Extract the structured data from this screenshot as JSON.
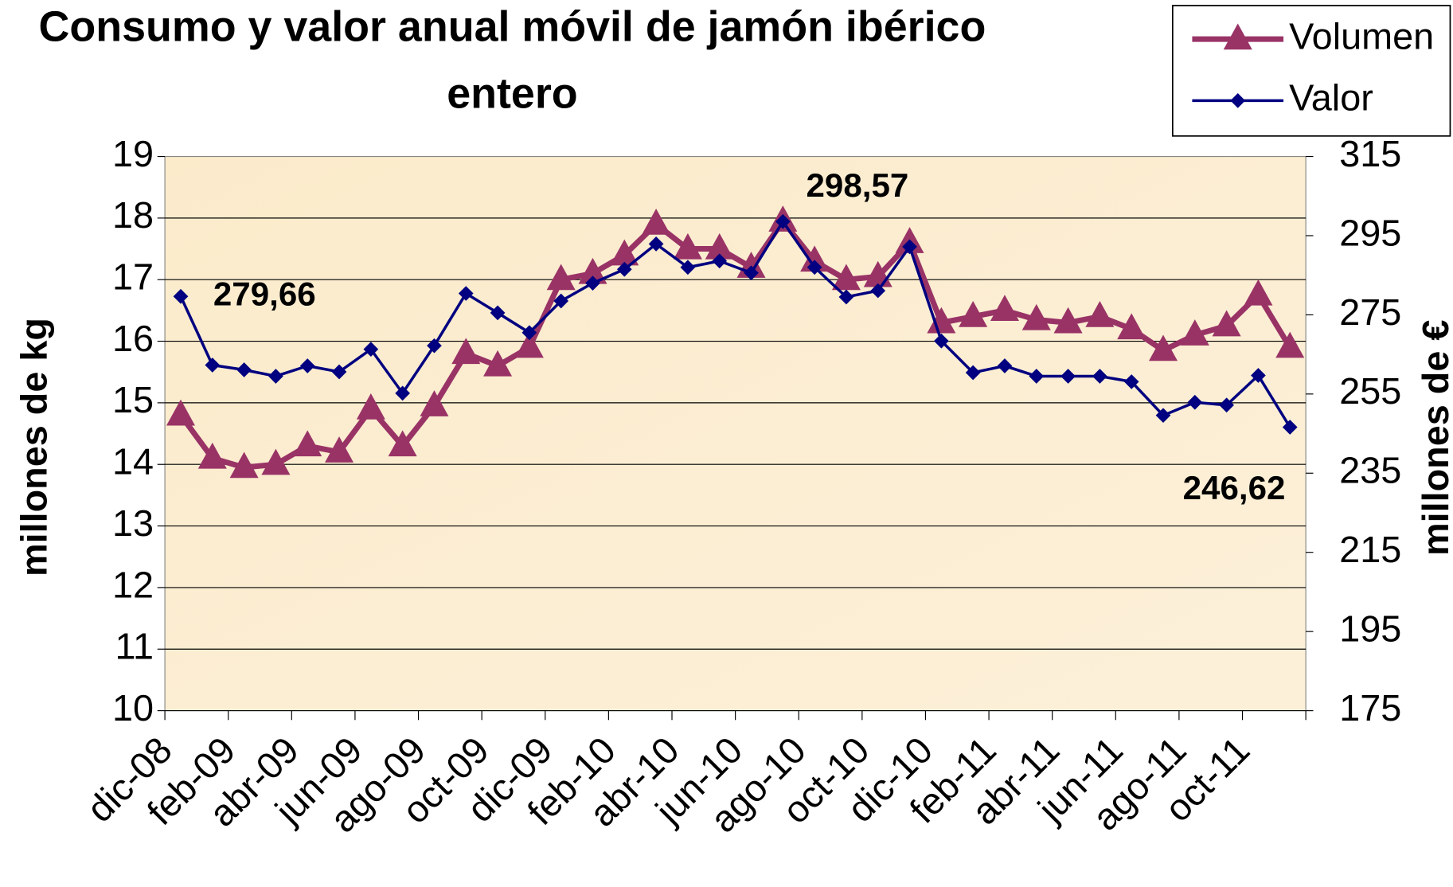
{
  "chart_data": {
    "type": "line",
    "title": "Consumo y valor anual móvil de jamón ibérico entero",
    "categories": [
      "dic-08",
      null,
      "feb-09",
      null,
      "abr-09",
      null,
      "jun-09",
      null,
      "ago-09",
      null,
      "oct-09",
      null,
      "dic-09",
      null,
      "feb-10",
      null,
      "abr-10",
      null,
      "jun-10",
      null,
      "ago-10",
      null,
      "oct-10",
      null,
      "dic-10",
      null,
      "feb-11",
      null,
      "abr-11",
      null,
      "jun-11",
      null,
      "ago-11",
      null,
      "oct-11",
      null
    ],
    "y_label": "millones de kg",
    "y2_label": "millones de €",
    "ylim": [
      10,
      19
    ],
    "yticks": [
      10,
      11,
      12,
      13,
      14,
      15,
      16,
      17,
      18,
      19
    ],
    "y2lim": [
      175,
      315
    ],
    "y2ticks": [
      175,
      195,
      215,
      235,
      255,
      275,
      295,
      315
    ],
    "grid": true,
    "legend": "top-right",
    "series": [
      {
        "name": "Volumen",
        "color": "#993366",
        "marker": "triangle",
        "values": [
          14.8,
          14.1,
          13.95,
          14.0,
          14.3,
          14.2,
          14.9,
          14.3,
          14.95,
          15.8,
          15.6,
          15.9,
          17.0,
          17.1,
          17.4,
          17.9,
          17.5,
          17.5,
          17.2,
          17.95,
          17.3,
          17.0,
          17.05,
          17.6,
          16.3,
          16.4,
          16.5,
          16.35,
          16.3,
          16.4,
          16.2,
          15.85,
          16.1,
          16.25,
          16.75,
          15.9
        ]
      },
      {
        "name": "Valor",
        "color": "#000080",
        "marker": "diamond",
        "axis": "y2",
        "values": [
          279.66,
          262.3,
          261.1,
          259.5,
          262.1,
          260.6,
          266.3,
          255.2,
          267.2,
          280.4,
          275.5,
          270.5,
          278.5,
          283,
          286.5,
          292.9,
          287,
          288.6,
          285.6,
          298.57,
          287,
          279.5,
          281.1,
          292.2,
          268.4,
          260.4,
          262.1,
          259.5,
          259.5,
          259.5,
          258.1,
          249.6,
          252.9,
          252.2,
          259.7,
          246.62
        ],
        "value_labels": [
          "279,66",
          null,
          null,
          null,
          null,
          null,
          null,
          null,
          null,
          null,
          null,
          null,
          null,
          null,
          null,
          null,
          null,
          null,
          null,
          "298,57",
          null,
          null,
          null,
          null,
          null,
          null,
          null,
          null,
          null,
          null,
          null,
          null,
          null,
          null,
          null,
          "246,62"
        ]
      }
    ]
  }
}
